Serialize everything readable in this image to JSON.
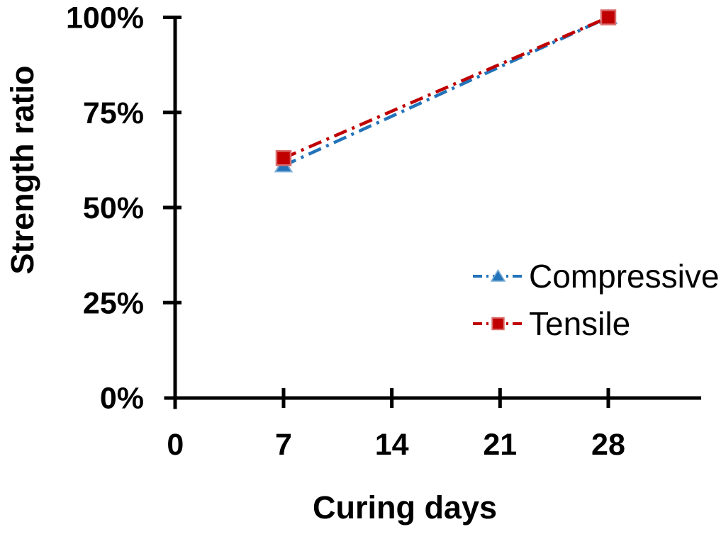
{
  "chart_data": {
    "type": "line",
    "title": "",
    "xlabel": "Curing days",
    "ylabel": "Strength ratio",
    "x_ticks": [
      "0",
      "7",
      "14",
      "21",
      "28"
    ],
    "y_ticks": [
      "0%",
      "25%",
      "50%",
      "75%",
      "100%"
    ],
    "xlim": [
      0,
      34
    ],
    "ylim_percent": [
      0,
      100
    ],
    "grid": false,
    "legend_position": "inside-right",
    "axis_color": "#000000",
    "series": [
      {
        "name": "Compressive",
        "color": "#2273B9",
        "marker": "triangle",
        "line_style": "dash-dot",
        "x": [
          7,
          28
        ],
        "y_percent": [
          61,
          100
        ]
      },
      {
        "name": "Tensile",
        "color": "#C00000",
        "marker": "square",
        "line_style": "dash-dot",
        "x": [
          7,
          28
        ],
        "y_percent": [
          63,
          100
        ]
      }
    ]
  }
}
